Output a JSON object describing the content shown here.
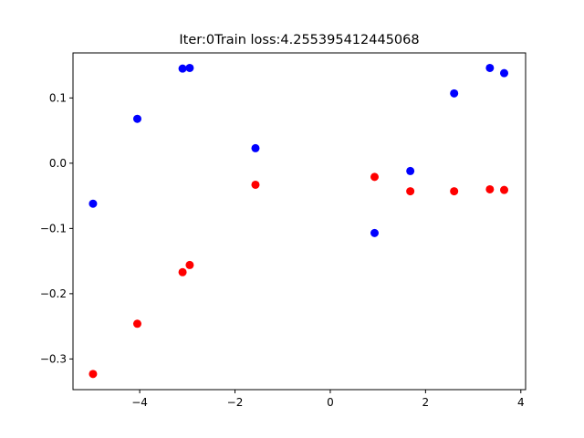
{
  "chart_data": {
    "type": "scatter",
    "title": "Iter:0Train loss:4.255395412445068",
    "xlabel": "",
    "ylabel": "",
    "xlim": [
      -5.4,
      4.1
    ],
    "ylim": [
      -0.347,
      0.169
    ],
    "grid": false,
    "x_ticks": [
      {
        "value": -4,
        "label": "−4"
      },
      {
        "value": -2,
        "label": "−2"
      },
      {
        "value": 0,
        "label": "0"
      },
      {
        "value": 2,
        "label": "2"
      },
      {
        "value": 4,
        "label": "4"
      }
    ],
    "y_ticks": [
      {
        "value": -0.3,
        "label": "−0.3"
      },
      {
        "value": -0.2,
        "label": "−0.2"
      },
      {
        "value": -0.1,
        "label": "−0.1"
      },
      {
        "value": 0.0,
        "label": "0.0"
      },
      {
        "value": 0.1,
        "label": "0.1"
      }
    ],
    "series": [
      {
        "color": "#0000ff",
        "points": [
          {
            "x": -4.98,
            "y": -0.062
          },
          {
            "x": -4.05,
            "y": 0.068
          },
          {
            "x": -3.1,
            "y": 0.145
          },
          {
            "x": -2.95,
            "y": 0.146
          },
          {
            "x": -1.57,
            "y": 0.023
          },
          {
            "x": 0.93,
            "y": -0.107
          },
          {
            "x": 1.68,
            "y": -0.012
          },
          {
            "x": 2.6,
            "y": 0.107
          },
          {
            "x": 3.35,
            "y": 0.146
          },
          {
            "x": 3.65,
            "y": 0.138
          }
        ]
      },
      {
        "color": "#ff0000",
        "points": [
          {
            "x": -4.98,
            "y": -0.323
          },
          {
            "x": -4.05,
            "y": -0.246
          },
          {
            "x": -3.1,
            "y": -0.167
          },
          {
            "x": -2.95,
            "y": -0.156
          },
          {
            "x": -1.57,
            "y": -0.033
          },
          {
            "x": 0.93,
            "y": -0.021
          },
          {
            "x": 1.68,
            "y": -0.043
          },
          {
            "x": 2.6,
            "y": -0.043
          },
          {
            "x": 3.35,
            "y": -0.04
          },
          {
            "x": 3.65,
            "y": -0.041
          }
        ]
      }
    ]
  }
}
